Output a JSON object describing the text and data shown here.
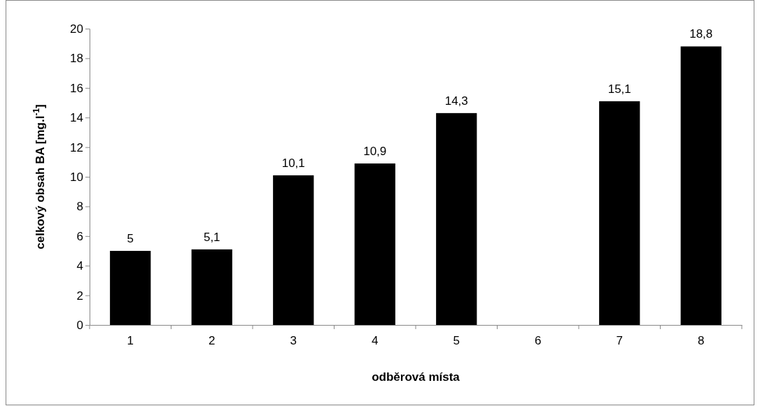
{
  "chart_data": {
    "type": "bar",
    "xlabel": "odběrová místa",
    "ylabel": "celkový obsah BA [mg.l$^{-1}$]",
    "categories": [
      "1",
      "2",
      "3",
      "4",
      "5",
      "6",
      "7",
      "8"
    ],
    "values": [
      5,
      5.1,
      10.1,
      10.9,
      14.3,
      null,
      15.1,
      18.8
    ],
    "value_labels": [
      "5",
      "5,1",
      "10,1",
      "10,9",
      "14,3",
      null,
      "15,1",
      "18,8"
    ],
    "color": "#000000",
    "ylim": [
      0,
      20
    ],
    "yticks": [
      0,
      2,
      4,
      6,
      8,
      10,
      12,
      14,
      16,
      18,
      20
    ],
    "grid": false
  }
}
